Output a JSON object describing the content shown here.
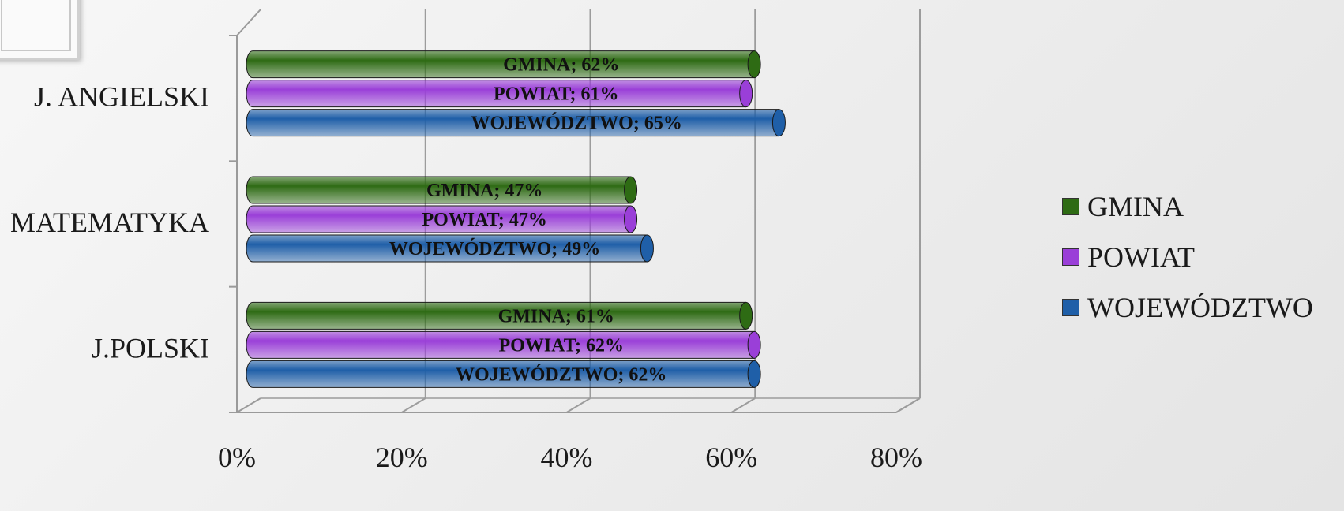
{
  "chart_data": {
    "type": "bar",
    "orientation": "horizontal",
    "categories": [
      "J.POLSKI",
      "MATEMATYKA",
      "J. ANGIELSKI"
    ],
    "series": [
      {
        "name": "WOJEWÓDZTWO",
        "values": [
          62,
          49,
          65
        ],
        "labels": [
          "WOJEWÓDZTWO; 62%",
          "WOJEWÓDZTWO; 49%",
          "WOJEWÓDZTWO; 65%"
        ],
        "color": "#1f5fa8"
      },
      {
        "name": "POWIAT",
        "values": [
          62,
          47,
          61
        ],
        "labels": [
          "POWIAT; 62%",
          "POWIAT; 47%",
          "POWIAT; 61%"
        ],
        "color": "#9a3fd8"
      },
      {
        "name": "GMINA",
        "values": [
          61,
          47,
          62
        ],
        "labels": [
          "GMINA; 61%",
          "GMINA; 47%",
          "GMINA; 62%"
        ],
        "color": "#2e6b14"
      }
    ],
    "xticks": [
      "0%",
      "20%",
      "40%",
      "60%",
      "80%"
    ],
    "xlim": [
      0,
      80
    ],
    "grid": true,
    "legend_position": "right",
    "legend_order": [
      "GMINA",
      "POWIAT",
      "WOJEWÓDZTWO"
    ]
  },
  "legend": {
    "items": [
      {
        "label": "GMINA",
        "color": "#2e6b14"
      },
      {
        "label": "POWIAT",
        "color": "#9a3fd8"
      },
      {
        "label": "WOJEWÓDZTWO",
        "color": "#1f5fa8"
      }
    ]
  }
}
